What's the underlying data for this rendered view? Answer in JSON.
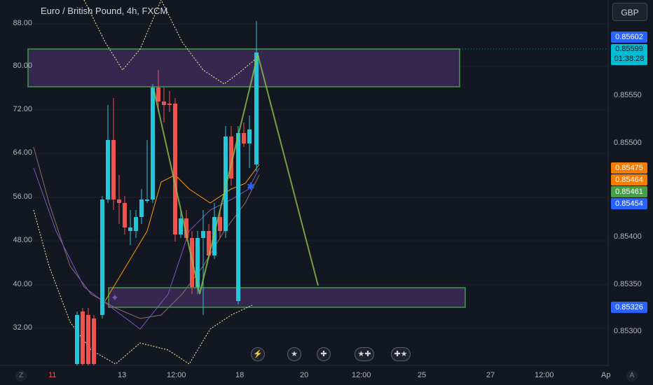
{
  "header": {
    "symbol_title": "Euro / British Pound, 4h, FXCM",
    "currency_button": "GBP"
  },
  "left_axis": {
    "ticks": [
      "88.00",
      "80.00",
      "72.00",
      "64.00",
      "56.00",
      "48.00",
      "40.00",
      "32.00"
    ]
  },
  "right_axis": {
    "ticks": [
      "0.85550",
      "0.85500",
      "0.85400",
      "0.85350",
      "0.85300"
    ]
  },
  "price_badges": [
    {
      "name": "price-badge-high",
      "value": "0.85602",
      "color": "#2962ff"
    },
    {
      "name": "price-badge-last",
      "value": "0.85599",
      "color": "#00bcd4",
      "countdown": "01:38:28"
    },
    {
      "name": "price-badge-ma-1",
      "value": "0.85475",
      "color": "#f57c00"
    },
    {
      "name": "price-badge-ma-2",
      "value": "0.85464",
      "color": "#f57c00"
    },
    {
      "name": "price-badge-ma-3",
      "value": "0.85461",
      "color": "#43a047"
    },
    {
      "name": "price-badge-ma-4",
      "value": "0.85454",
      "color": "#2962ff"
    },
    {
      "name": "price-badge-low",
      "value": "0.85326",
      "color": "#2962ff"
    }
  ],
  "time_axis": {
    "ticks": [
      "11",
      "13",
      "12:00",
      "18",
      "20",
      "12:00",
      "25",
      "27",
      "12:00",
      "Ap"
    ]
  },
  "corners": {
    "left": "Z",
    "right": "A"
  },
  "event_icons": [
    "flash-event-icon",
    "eu-flag-icon",
    "uk-flag-icon",
    "eu-uk-flags-icon",
    "uk-eu-flags-icon"
  ],
  "colors": {
    "background": "#131722",
    "bull": "#26c6da",
    "bear": "#ef5350",
    "zone_fill": "#3b2a55",
    "zone_border": "#4caf50",
    "projection": "#8bc34a"
  }
}
